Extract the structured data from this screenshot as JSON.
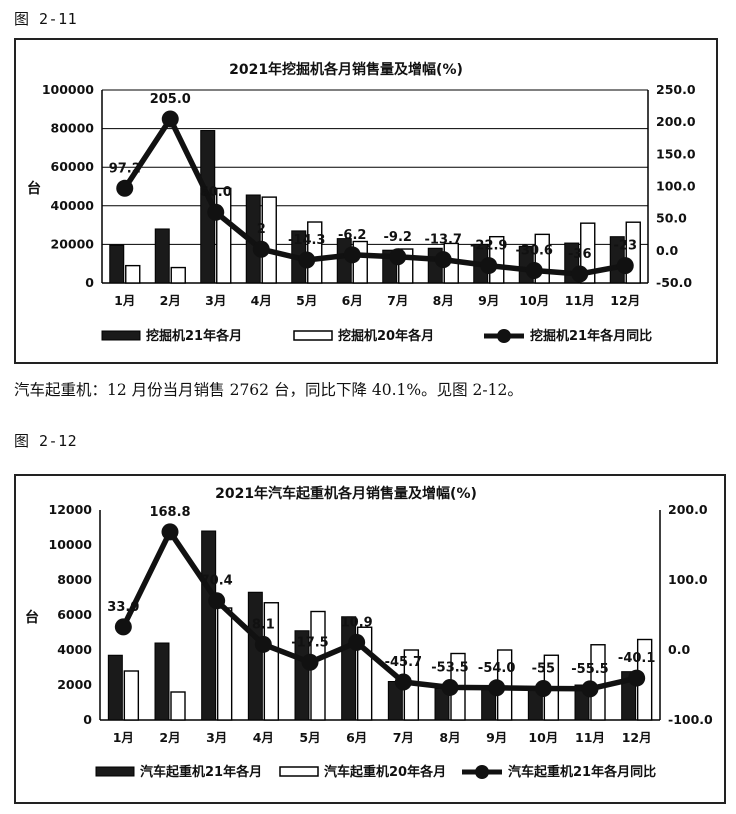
{
  "figure1_label": "图 2-11",
  "figure2_label": "图 2-12",
  "paragraph": "汽车起重机：12 月份当月销售 2762 台，同比下降 40.1%。见图 2-12。",
  "colors": {
    "bar21": "#1a1a1a",
    "bar20": "#ffffff",
    "line": "#111111",
    "grid": "#000000"
  },
  "chart_data": [
    {
      "type": "bar",
      "title": "2021年挖掘机各月销售量及增幅(%)",
      "ylabel": "台",
      "xlabel": "",
      "categories": [
        "1月",
        "2月",
        "3月",
        "4月",
        "5月",
        "6月",
        "7月",
        "8月",
        "9月",
        "10月",
        "11月",
        "12月"
      ],
      "ylim": [
        0,
        100000
      ],
      "yticks": [
        "0",
        "20000",
        "40000",
        "60000",
        "80000",
        "100000"
      ],
      "y2lim": [
        -50,
        250
      ],
      "y2ticks": [
        "-50.0",
        "0.0",
        "50.0",
        "100.0",
        "150.0",
        "200.0",
        "250.0"
      ],
      "grid": true,
      "legend_position": "bottom",
      "series": [
        {
          "name": "挖掘机21年各月",
          "kind": "bar",
          "values": [
            19600,
            28000,
            79000,
            45600,
            27000,
            23000,
            17000,
            18000,
            20000,
            19000,
            20700,
            24000
          ]
        },
        {
          "name": "挖掘机20年各月",
          "kind": "bar",
          "values": [
            9000,
            8000,
            49000,
            44500,
            31600,
            21500,
            17600,
            20500,
            24000,
            25200,
            31000,
            31500
          ]
        },
        {
          "name": "挖掘机21年各月同比",
          "kind": "line",
          "axis": "right",
          "values": [
            97.2,
            205.0,
            60.0,
            2.5,
            -14.3,
            -6.2,
            -9.2,
            -13.7,
            -22.9,
            -30.6,
            -36.0,
            -23.0
          ],
          "labels": [
            "97.2",
            "205.0",
            "60.0",
            "2",
            "-14.3",
            "-6.2",
            "-9.2",
            "-13.7",
            "-22.9",
            "-30.6",
            "-36",
            "-23"
          ]
        }
      ]
    },
    {
      "type": "bar",
      "title": "2021年汽车起重机各月销售量及增幅(%)",
      "ylabel": "台",
      "xlabel": "",
      "categories": [
        "1月",
        "2月",
        "3月",
        "4月",
        "5月",
        "6月",
        "7月",
        "8月",
        "9月",
        "10月",
        "11月",
        "12月"
      ],
      "ylim": [
        0,
        12000
      ],
      "yticks": [
        "0",
        "2000",
        "4000",
        "6000",
        "8000",
        "10000",
        "12000"
      ],
      "y2lim": [
        -100,
        200
      ],
      "y2ticks": [
        "-100.0",
        "0.0",
        "100.0",
        "200.0"
      ],
      "grid": false,
      "legend_position": "bottom",
      "series": [
        {
          "name": "汽车起重机21年各月",
          "kind": "bar",
          "values": [
            3700,
            4400,
            10800,
            7300,
            5100,
            5900,
            2200,
            1800,
            1900,
            1700,
            2000,
            2762
          ]
        },
        {
          "name": "汽车起重机20年各月",
          "kind": "bar",
          "values": [
            2800,
            1600,
            6400,
            6700,
            6200,
            5300,
            4000,
            3800,
            4000,
            3700,
            4300,
            4600
          ]
        },
        {
          "name": "汽车起重机21年各月同比",
          "kind": "line",
          "axis": "right",
          "values": [
            33.0,
            168.8,
            70.4,
            8.1,
            -17.5,
            10.9,
            -45.7,
            -53.5,
            -54.0,
            -55.0,
            -55.5,
            -40.1
          ],
          "labels": [
            "33.0",
            "168.8",
            "70.4",
            "8.1",
            "-17.5",
            "10.9",
            "-45.7",
            "-53.5",
            "-54.0",
            "-55",
            "-55.5",
            "-40.1"
          ]
        }
      ]
    }
  ]
}
